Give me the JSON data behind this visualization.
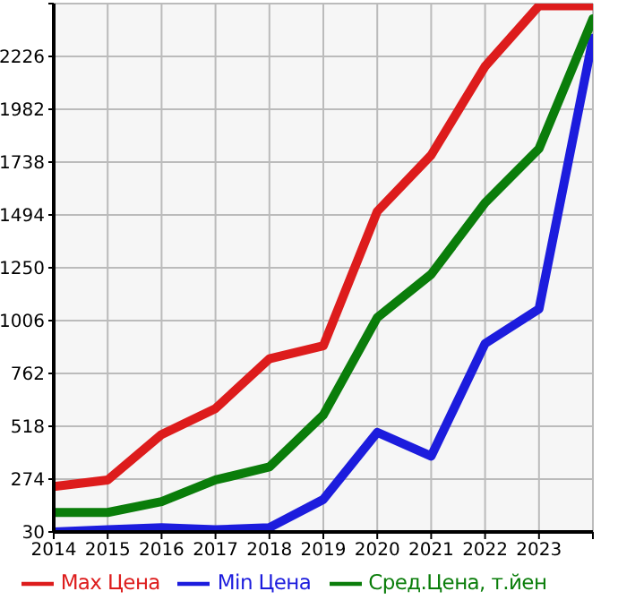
{
  "chart_data": {
    "type": "line",
    "x": [
      2014,
      2015,
      2016,
      2017,
      2018,
      2019,
      2020,
      2021,
      2022,
      2023,
      2024
    ],
    "xlim": [
      2014,
      2024
    ],
    "xticks": [
      2014,
      2015,
      2016,
      2017,
      2018,
      2019,
      2020,
      2021,
      2022,
      2023,
      {
        "value": 2024,
        "label": null
      }
    ],
    "ylim": [
      30,
      2470
    ],
    "yticks": [
      30,
      274,
      518,
      762,
      1006,
      1250,
      1494,
      1738,
      1982,
      2226,
      {
        "value": 2470,
        "label": null
      }
    ],
    "grid": true,
    "legend": "bottom",
    "marker": "none",
    "line_style": "solid",
    "series": [
      {
        "name": "Max Цена",
        "color": "#dd1c1c",
        "values": [
          240,
          270,
          480,
          600,
          830,
          890,
          1510,
          1770,
          2180,
          2460,
          2460
        ]
      },
      {
        "name": "Min Цена",
        "color": "#1c1cdd",
        "values": [
          30,
          40,
          50,
          40,
          50,
          180,
          490,
          380,
          900,
          1060,
          2310
        ]
      },
      {
        "name": "Сред.Цена, т.йен",
        "color": "#0a7d0a",
        "values": [
          120,
          120,
          170,
          270,
          330,
          570,
          1020,
          1220,
          1550,
          1800,
          2400
        ]
      }
    ]
  }
}
